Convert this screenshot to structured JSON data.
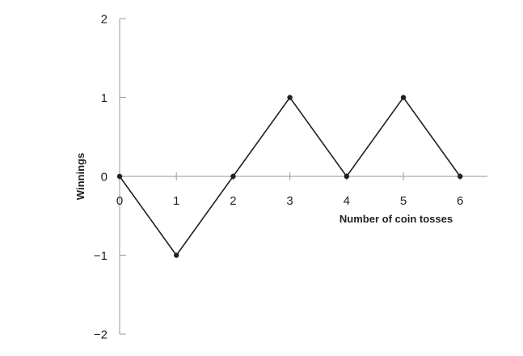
{
  "chart_data": {
    "type": "line",
    "title": "",
    "xlabel": "Number of coin tosses",
    "ylabel": "Winnings",
    "x": [
      0,
      1,
      2,
      3,
      4,
      5,
      6
    ],
    "series": [
      {
        "values": [
          0,
          -1,
          0,
          1,
          0,
          1,
          0
        ]
      }
    ],
    "xlim": [
      0,
      6
    ],
    "ylim": [
      -2,
      2
    ],
    "x_ticks": [
      "0",
      "1",
      "2",
      "3",
      "4",
      "5",
      "6"
    ],
    "y_ticks": [
      "2",
      "1",
      "0",
      "−1",
      "−2"
    ],
    "y_tick_values": [
      2,
      1,
      0,
      -1,
      -2
    ],
    "grid": false,
    "legend": "none",
    "colors": {
      "axis": "#a7a9ac",
      "line": "#231f20",
      "marker": "#231f20",
      "text": "#231f20"
    }
  }
}
